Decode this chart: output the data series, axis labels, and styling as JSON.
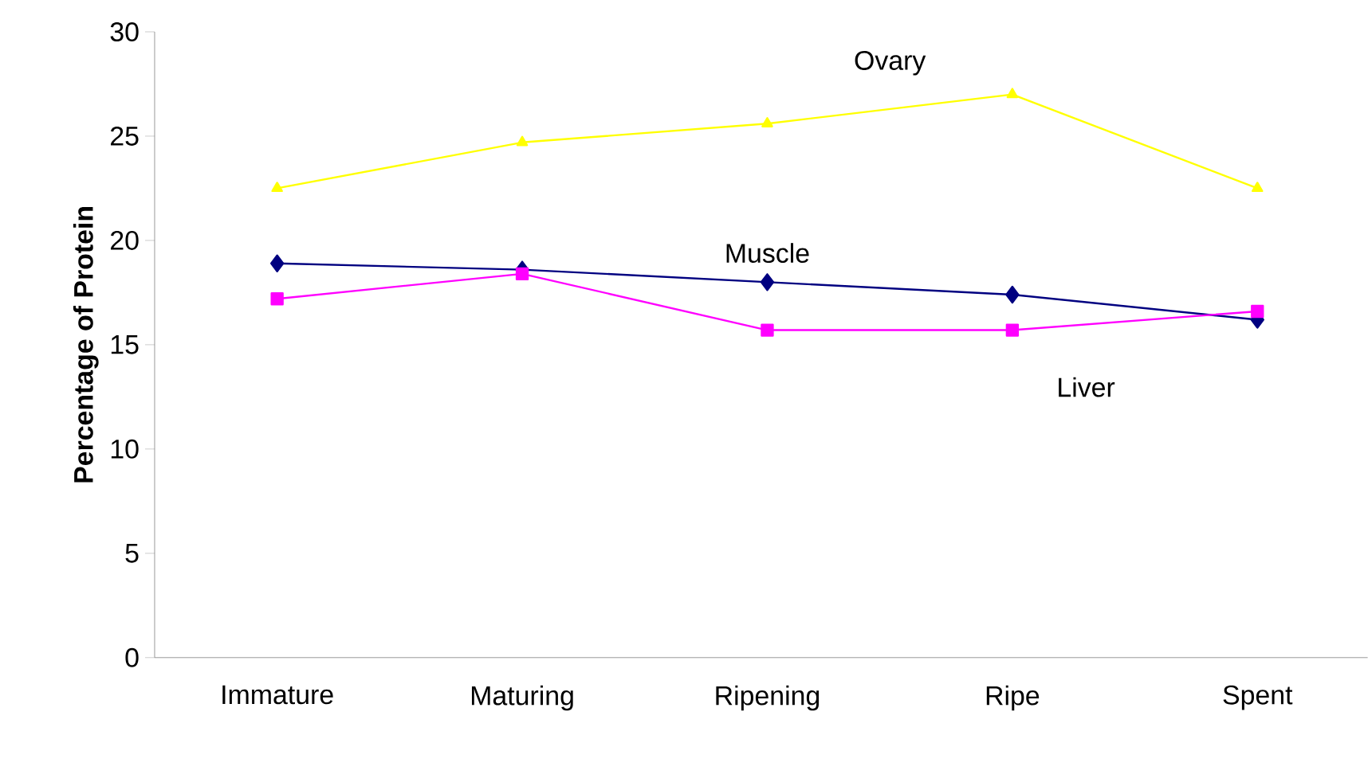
{
  "chart_data": {
    "type": "line",
    "ylabel": "Percentage of Protein",
    "categories": [
      "Immature",
      "Maturing",
      "Ripening",
      "Ripe",
      "Spent"
    ],
    "series": [
      {
        "name": "Ovary",
        "color": "#ffff00",
        "marker": "triangle",
        "values": [
          22.5,
          24.7,
          25.6,
          27.0,
          22.5
        ]
      },
      {
        "name": "Muscle",
        "color": "#000080",
        "marker": "diamond",
        "values": [
          18.9,
          18.6,
          18.0,
          17.4,
          16.2
        ]
      },
      {
        "name": "Liver",
        "color": "#ff00ff",
        "marker": "square",
        "values": [
          17.2,
          18.4,
          15.7,
          15.7,
          16.6
        ]
      }
    ],
    "ylim": [
      0,
      30
    ],
    "yticks": [
      0,
      5,
      10,
      15,
      20,
      25,
      30
    ],
    "grid": false
  }
}
